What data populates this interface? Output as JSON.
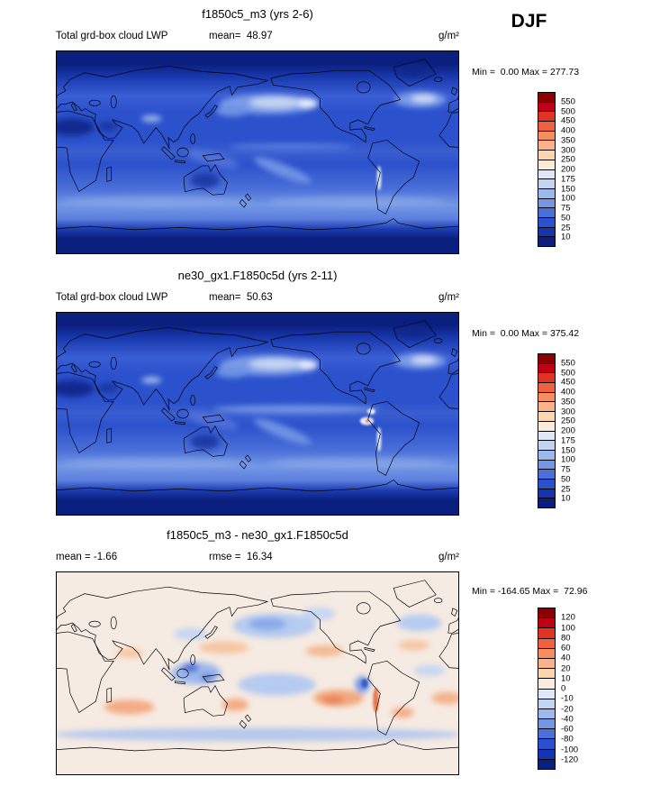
{
  "figure": {
    "season": "DJF"
  },
  "panels": [
    {
      "title": "f1850c5_m3 (yrs 2-6)",
      "left_label": "Total grd-box cloud LWP",
      "center_label": "mean=  48.97",
      "units": "g/m²",
      "minmax": "Min =  0.00 Max = 277.73",
      "colorbar": {
        "ticks": [
          "550",
          "500",
          "450",
          "400",
          "350",
          "300",
          "250",
          "200",
          "175",
          "150",
          "100",
          "75",
          "50",
          "25",
          "10"
        ],
        "colors": [
          "#8b0000",
          "#c00016",
          "#e23322",
          "#ef6140",
          "#f78e62",
          "#fbb289",
          "#fdd6b0",
          "#faebdc",
          "#dde8f8",
          "#c3d4f2",
          "#9db8ec",
          "#7397e4",
          "#4a6fd8",
          "#2b51cc",
          "#1535b0",
          "#0a1f7e"
        ]
      }
    },
    {
      "title": "ne30_gx1.F1850c5d (yrs 2-11)",
      "left_label": "Total grd-box cloud LWP",
      "center_label": "mean=  50.63",
      "units": "g/m²",
      "minmax": "Min =  0.00 Max = 375.42",
      "colorbar": {
        "ticks": [
          "550",
          "500",
          "450",
          "400",
          "350",
          "300",
          "250",
          "200",
          "175",
          "150",
          "100",
          "75",
          "50",
          "25",
          "10"
        ],
        "colors": [
          "#8b0000",
          "#c00016",
          "#e23322",
          "#ef6140",
          "#f78e62",
          "#fbb289",
          "#fdd6b0",
          "#faebdc",
          "#dde8f8",
          "#c3d4f2",
          "#9db8ec",
          "#7397e4",
          "#4a6fd8",
          "#2b51cc",
          "#1535b0",
          "#0a1f7e"
        ]
      }
    },
    {
      "title": "f1850c5_m3 - ne30_gx1.F1850c5d",
      "left_label": "mean = -1.66",
      "center_label": "rmse =  16.34",
      "units": "g/m²",
      "minmax": "Min = -164.65 Max =  72.96",
      "colorbar": {
        "ticks": [
          "120",
          "100",
          "80",
          "60",
          "40",
          "20",
          "10",
          "0",
          "-10",
          "-20",
          "-40",
          "-60",
          "-80",
          "-100",
          "-120"
        ],
        "colors": [
          "#8b0000",
          "#c00016",
          "#e23322",
          "#ef6140",
          "#f78e62",
          "#fbb289",
          "#fdd6b0",
          "#faebdc",
          "#dde8f8",
          "#c3d4f2",
          "#9db8ec",
          "#7397e4",
          "#4a6fd8",
          "#2b51cc",
          "#1535b0",
          "#0a1f7e"
        ]
      }
    }
  ],
  "chart_data": [
    {
      "type": "heatmap",
      "subtype": "global-latlon-filled-contour",
      "title": "f1850c5_m3 (yrs 2-6)",
      "variable": "Total grd-box cloud LWP",
      "season": "DJF",
      "units": "g/m²",
      "mean": 48.97,
      "min": 0.0,
      "max": 277.73,
      "contour_levels": [
        10,
        25,
        50,
        75,
        100,
        150,
        175,
        200,
        250,
        300,
        350,
        400,
        450,
        500,
        550
      ],
      "palette_top_to_bottom": [
        "#8b0000",
        "#c00016",
        "#e23322",
        "#ef6140",
        "#f78e62",
        "#fbb289",
        "#fdd6b0",
        "#faebdc",
        "#dde8f8",
        "#c3d4f2",
        "#9db8ec",
        "#7397e4",
        "#4a6fd8",
        "#2b51cc",
        "#1535b0",
        "#0a1f7e"
      ],
      "legend_position": "right"
    },
    {
      "type": "heatmap",
      "subtype": "global-latlon-filled-contour",
      "title": "ne30_gx1.F1850c5d (yrs 2-11)",
      "variable": "Total grd-box cloud LWP",
      "season": "DJF",
      "units": "g/m²",
      "mean": 50.63,
      "min": 0.0,
      "max": 375.42,
      "contour_levels": [
        10,
        25,
        50,
        75,
        100,
        150,
        175,
        200,
        250,
        300,
        350,
        400,
        450,
        500,
        550
      ],
      "palette_top_to_bottom": [
        "#8b0000",
        "#c00016",
        "#e23322",
        "#ef6140",
        "#f78e62",
        "#fbb289",
        "#fdd6b0",
        "#faebdc",
        "#dde8f8",
        "#c3d4f2",
        "#9db8ec",
        "#7397e4",
        "#4a6fd8",
        "#2b51cc",
        "#1535b0",
        "#0a1f7e"
      ],
      "legend_position": "right"
    },
    {
      "type": "heatmap",
      "subtype": "global-latlon-difference",
      "title": "f1850c5_m3 - ne30_gx1.F1850c5d",
      "variable": "Total grd-box cloud LWP difference",
      "season": "DJF",
      "units": "g/m²",
      "mean": -1.66,
      "rmse": 16.34,
      "min": -164.65,
      "max": 72.96,
      "contour_levels": [
        -120,
        -100,
        -80,
        -60,
        -40,
        -20,
        -10,
        0,
        10,
        20,
        40,
        60,
        80,
        100,
        120
      ],
      "palette_top_to_bottom": [
        "#8b0000",
        "#c00016",
        "#e23322",
        "#ef6140",
        "#f78e62",
        "#fbb289",
        "#fdd6b0",
        "#faebdc",
        "#dde8f8",
        "#c3d4f2",
        "#9db8ec",
        "#7397e4",
        "#4a6fd8",
        "#2b51cc",
        "#1535b0",
        "#0a1f7e"
      ],
      "legend_position": "right"
    }
  ]
}
